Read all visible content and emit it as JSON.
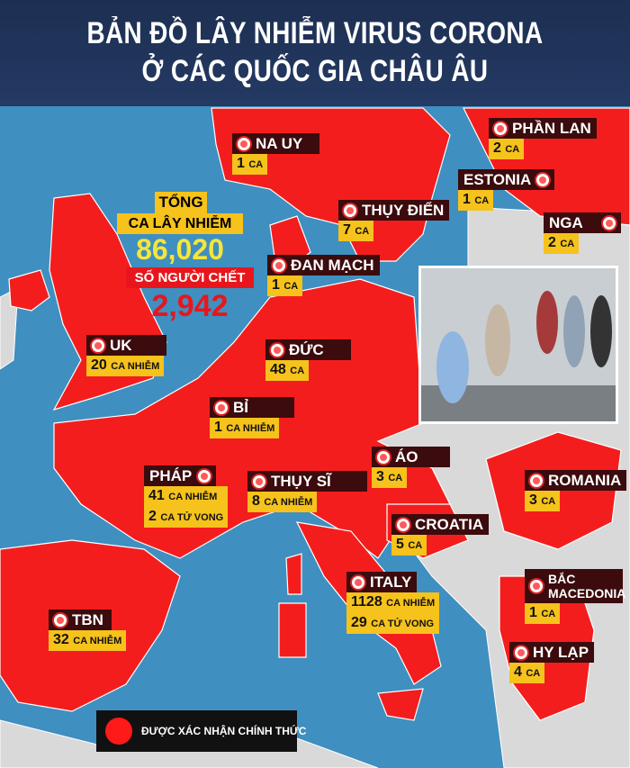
{
  "title": {
    "line1": "BẢN ĐỒ LÂY NHIỄM VIRUS CORONA",
    "line2": "Ở CÁC QUỐC GIA CHÂU ÂU"
  },
  "totals": {
    "total_label_1": "TỔNG",
    "total_label_2": "CA LÂY NHIỄM",
    "total_value": "86,020",
    "deaths_label": "SỐ NGƯỜI CHẾT",
    "deaths_value": "2,942"
  },
  "colors": {
    "infected": "#f41d1d",
    "sea": "#3f8fc0",
    "other_land": "#d9d9d9",
    "label_header": "#3b0b0d",
    "label_body": "#f6c21c"
  },
  "countries": [
    {
      "name": "NA UY",
      "cases": "1",
      "unit": "CA"
    },
    {
      "name": "PHẦN LAN",
      "cases": "2",
      "unit": "CA"
    },
    {
      "name": "ESTONIA",
      "cases": "1",
      "unit": "CA"
    },
    {
      "name": "NGA",
      "cases": "2",
      "unit": "CA"
    },
    {
      "name": "THỤY ĐIỂN",
      "cases": "7",
      "unit": "CA"
    },
    {
      "name": "ĐAN MẠCH",
      "cases": "1",
      "unit": "CA"
    },
    {
      "name": "UK",
      "cases": "20",
      "unit": "CA NHIỄM"
    },
    {
      "name": "ĐỨC",
      "cases": "48",
      "unit": "CA"
    },
    {
      "name": "BỈ",
      "cases": "1",
      "unit": "CA NHIỄM"
    },
    {
      "name": "PHÁP",
      "cases": "41",
      "unit": "CA NHIỄM",
      "deaths": "2",
      "deaths_unit": "CA TỬ VONG"
    },
    {
      "name": "THỤY SĨ",
      "cases": "8",
      "unit": "CA NHIỄM"
    },
    {
      "name": "ÁO",
      "cases": "3",
      "unit": "CA"
    },
    {
      "name": "ROMANIA",
      "cases": "3",
      "unit": "CA"
    },
    {
      "name": "CROATIA",
      "cases": "5",
      "unit": "CA"
    },
    {
      "name": "ITALY",
      "cases": "1128",
      "unit": "CA NHIỄM",
      "deaths": "29",
      "deaths_unit": "CA TỬ VONG"
    },
    {
      "name": "BẮC MACEDONIA",
      "cases": "1",
      "unit": "CA"
    },
    {
      "name": "HY LẠP",
      "cases": "4",
      "unit": "CA"
    },
    {
      "name": "TBN",
      "cases": "32",
      "unit": "CA NHIỄM"
    }
  ],
  "legend": {
    "label": "ĐƯỢC XÁC NHẬN CHÍNH THỨC"
  }
}
